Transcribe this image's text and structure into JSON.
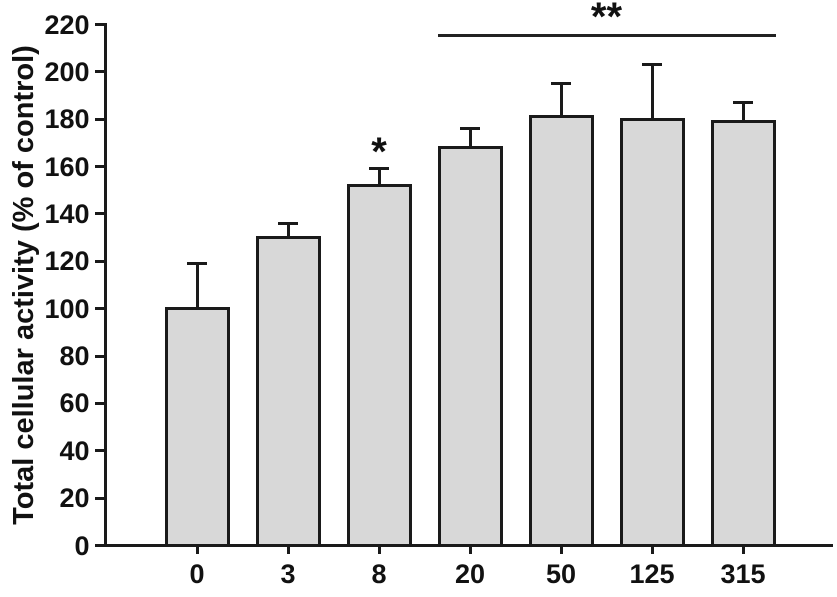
{
  "figure": {
    "background": "#ffffff"
  },
  "chart_data": {
    "type": "bar",
    "title": "",
    "xlabel": "",
    "ylabel": "Total cellular activity (% of control)",
    "categories": [
      "0",
      "3",
      "8",
      "20",
      "50",
      "125",
      "315"
    ],
    "values": [
      100,
      130,
      152,
      168,
      181,
      180,
      179
    ],
    "error_upper": [
      19,
      6,
      7,
      8,
      14,
      23,
      8
    ],
    "ylim": [
      0,
      220
    ],
    "yticks": [
      0,
      20,
      40,
      60,
      80,
      100,
      120,
      140,
      160,
      180,
      200,
      220
    ],
    "grid": false,
    "legend": false,
    "bar_fill": "#d8d8d8",
    "bar_border": "#1a1a1a",
    "annotations": [
      {
        "type": "star",
        "label": "*",
        "bar_index": 2
      },
      {
        "type": "bracket",
        "label": "**",
        "from_bar": 3,
        "to_bar": 6
      }
    ]
  }
}
